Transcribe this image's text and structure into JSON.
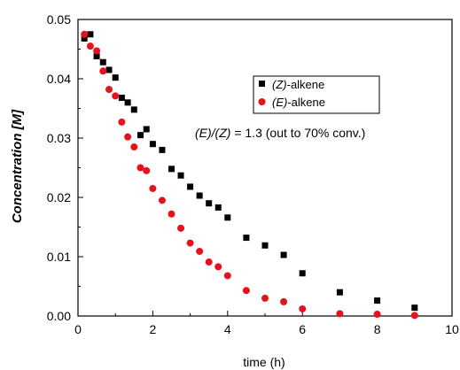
{
  "chart_data": {
    "type": "scatter",
    "title": "",
    "xlabel": "time (h)",
    "ylabel": "Concentration [M]",
    "xlim": [
      0,
      10
    ],
    "ylim": [
      0,
      0.05
    ],
    "xticks": [
      "0",
      "2",
      "4",
      "6",
      "8",
      "10"
    ],
    "yticks": [
      "0.00",
      "0.01",
      "0.02",
      "0.03",
      "0.04",
      "0.05"
    ],
    "grid": false,
    "legend_position": "top-right",
    "annotation": {
      "italic_part": "(E)/(Z)",
      "rest": " = 1.3 (out to 70% conv.)"
    },
    "series": [
      {
        "name_italic": "(Z)",
        "name_rest": "-alkene",
        "marker": "square",
        "color": "#000000",
        "x": [
          0.17,
          0.33,
          0.5,
          0.67,
          0.83,
          1.0,
          1.17,
          1.33,
          1.5,
          1.67,
          1.83,
          2.0,
          2.25,
          2.5,
          2.75,
          3.0,
          3.25,
          3.5,
          3.75,
          4.0,
          4.5,
          5.0,
          5.5,
          6.0,
          7.0,
          8.0,
          9.0
        ],
        "y": [
          0.0468,
          0.0475,
          0.0438,
          0.0428,
          0.0415,
          0.0402,
          0.0368,
          0.036,
          0.0348,
          0.0305,
          0.0315,
          0.029,
          0.028,
          0.0248,
          0.0237,
          0.0218,
          0.0203,
          0.019,
          0.0183,
          0.0166,
          0.0132,
          0.0119,
          0.0103,
          0.0072,
          0.004,
          0.0026,
          0.0014
        ]
      },
      {
        "name_italic": "(E)",
        "name_rest": "-alkene",
        "marker": "circle",
        "color": "#e8111b",
        "x": [
          0.17,
          0.33,
          0.5,
          0.67,
          0.83,
          1.0,
          1.17,
          1.33,
          1.5,
          1.67,
          1.83,
          2.0,
          2.25,
          2.5,
          2.75,
          3.0,
          3.25,
          3.5,
          3.75,
          4.0,
          4.5,
          5.0,
          5.5,
          6.0,
          7.0,
          8.0,
          9.0
        ],
        "y": [
          0.0475,
          0.0455,
          0.0447,
          0.0413,
          0.0382,
          0.0371,
          0.0327,
          0.0302,
          0.0285,
          0.025,
          0.0245,
          0.0215,
          0.0195,
          0.0172,
          0.0148,
          0.0123,
          0.0109,
          0.0091,
          0.0083,
          0.0068,
          0.0043,
          0.003,
          0.0024,
          0.0012,
          0.0004,
          0.0003,
          0.0001
        ]
      }
    ]
  }
}
